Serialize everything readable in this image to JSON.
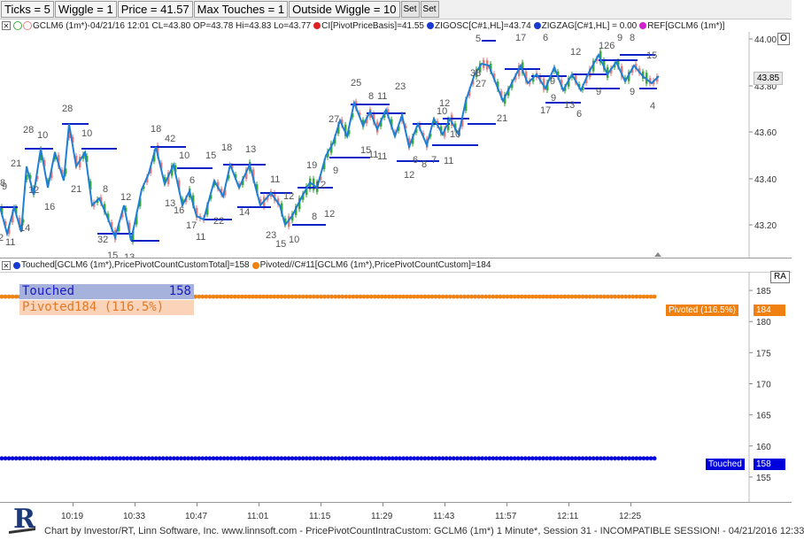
{
  "toolbar": {
    "ticks": "Ticks = 5",
    "wiggle": "Wiggle = 1",
    "price": "Price = 41.57",
    "max_touches": "Max Touches = 1",
    "outside_wiggle": "Outside Wiggle = 10",
    "set1": "Set",
    "set2": "Set"
  },
  "upper_legend": {
    "symbol": "GCLM6 (1m*)-04/21/16 12:01 CL=43.80 OP=43.78 Hi=43.83 Lo=43.77",
    "ci": "CI[PivotPriceBasis]=41.55",
    "zigosc": "ZIGOSC[C#1,HL]=43.74",
    "zigzag": "ZIGZAG[C#1,HL] = 0.00",
    "ref": "REF[GCLM6 (1m*)]",
    "corner_button": "O"
  },
  "lower_legend": {
    "touched": "Touched[GCLM6 (1m*),PricePivotCountCustomTotal]=158",
    "pivoted": "Pivoted//C#11[GCLM6 (1m*),PricePivotCountCustom]=184",
    "corner_button": "RA"
  },
  "info_box": {
    "touched_label": "Touched",
    "touched_value": "158",
    "pivoted_text": "Pivoted184 (116.5%)"
  },
  "upper_axis": {
    "ticks": [
      "44.00",
      "43.80",
      "43.60",
      "43.40",
      "43.20"
    ],
    "last_price": "43.85"
  },
  "lower_axis": {
    "ticks": [
      "185",
      "180",
      "175",
      "170",
      "165",
      "160",
      "155"
    ]
  },
  "badges": {
    "pivoted_label": "Pivoted (116.5%)",
    "pivoted_value": "184",
    "touched_label": "Touched",
    "touched_value": "158"
  },
  "time_axis": [
    "10:19",
    "10:33",
    "10:47",
    "11:01",
    "11:15",
    "11:29",
    "11:43",
    "11:57",
    "12:11",
    "12:25"
  ],
  "status_bar": "Chart by Investor/RT, Linn Software, Inc. www.linnsoft.com - PricePivotCountIntraCustom: GCLM6 (1m*) 1 Minute*, Session 31 - INCOMPATIBLE SESSION! - 04/21/2016 12:33",
  "logo_text": "R",
  "colors": {
    "zigzag": "#1e7fd6",
    "pivot_line": "#0a22c8",
    "candle_up": "#2aa02a",
    "candle_down": "#e07070",
    "touched": "#0000dd",
    "pivoted": "#f08010",
    "info_touched_bg": "#a6b2dc",
    "info_pivoted_bg": "#fbd3b8"
  },
  "chart_data": {
    "type": "line",
    "title": "",
    "price_range": [
      43.08,
      44.02
    ],
    "count_range": [
      151,
      188
    ],
    "count_series": [
      {
        "name": "Touched",
        "value": 158
      },
      {
        "name": "Pivoted",
        "value": 184
      }
    ],
    "swing_labels": [
      "11",
      "2",
      "8",
      "9",
      "21",
      "14",
      "28",
      "10",
      "12",
      "16",
      "28",
      "21",
      "10",
      "8",
      "32",
      "15",
      "13",
      "12",
      "18",
      "42",
      "13",
      "16",
      "10",
      "6",
      "17",
      "11",
      "15",
      "22",
      "18",
      "14",
      "13",
      "11",
      "12",
      "23",
      "15",
      "10",
      "8",
      "12",
      "19",
      "9",
      "12",
      "27",
      "25",
      "15",
      "8",
      "11",
      "11",
      "11",
      "23",
      "12",
      "6",
      "8",
      "7",
      "11",
      "10",
      "10",
      "12",
      "38",
      "5",
      "27",
      "21",
      "17",
      "17",
      "6",
      "9",
      "12",
      "9",
      "13",
      "6",
      "126",
      "9",
      "9",
      "9",
      "8",
      "15",
      "4"
    ]
  }
}
